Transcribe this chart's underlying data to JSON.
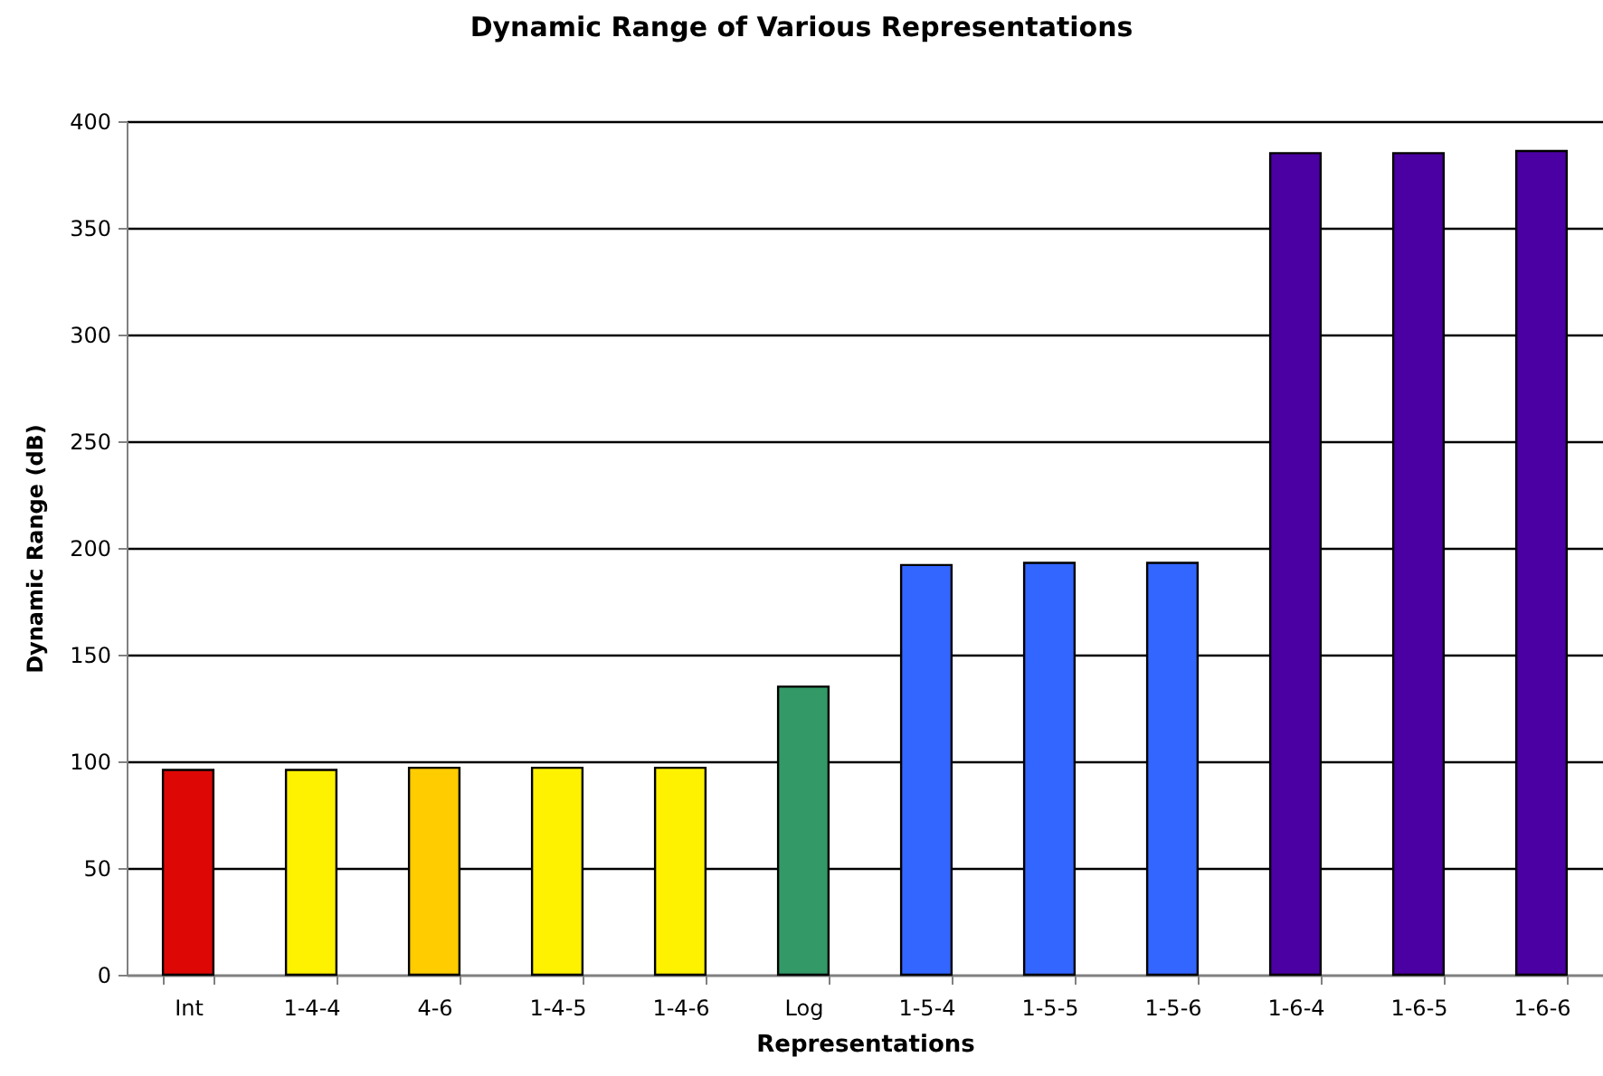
{
  "chart_data": {
    "type": "bar",
    "title": "Dynamic Range of Various Representations",
    "xlabel": "Representations",
    "ylabel": "Dynamic Range (dB)",
    "categories": [
      "Int",
      "1-4-4",
      "4-6",
      "1-4-5",
      "1-4-6",
      "Log",
      "1-5-4",
      "1-5-5",
      "1-5-6",
      "1-6-4",
      "1-6-5",
      "1-6-6"
    ],
    "values": [
      96,
      96,
      97,
      97,
      97,
      135,
      192,
      193,
      193,
      385,
      385,
      386
    ],
    "colors": [
      "#dd0806",
      "#fff200",
      "#ffcc00",
      "#fff200",
      "#fff200",
      "#339966",
      "#3366ff",
      "#3366ff",
      "#3366ff",
      "#4b00a3",
      "#4b00a3",
      "#4b00a3"
    ],
    "ylim": [
      0,
      400
    ],
    "yticks": [
      0,
      50,
      100,
      150,
      200,
      250,
      300,
      350,
      400
    ],
    "grid": "y"
  }
}
